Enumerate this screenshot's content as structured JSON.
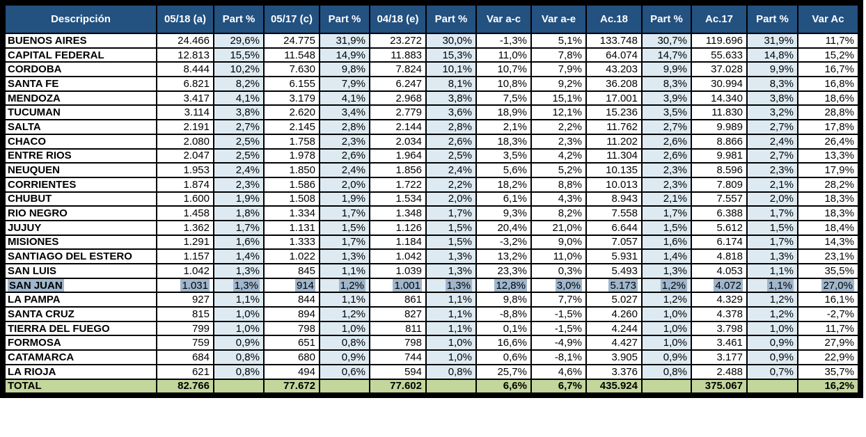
{
  "colors": {
    "header_bg": "#235180",
    "part_bg": "#DDEAF2",
    "total_bg": "#C3D69B",
    "selection": "#9FB6CC",
    "border": "#000000",
    "header_text": "#FFFFFF"
  },
  "table": {
    "columns": [
      "Descripción",
      "05/18 (a)",
      "Part %",
      "05/17 (c)",
      "Part %",
      "04/18 (e)",
      "Part %",
      "Var a-c",
      "Var a-e",
      "Ac.18",
      "Part %",
      "Ac.17",
      "Part %",
      "Var Ac"
    ],
    "rows": [
      {
        "label": "BUENOS AIRES",
        "selected": false,
        "cells": [
          "24.466",
          "29,6%",
          "24.775",
          "31,9%",
          "23.272",
          "30,0%",
          "-1,3%",
          "5,1%",
          "133.748",
          "30,7%",
          "119.696",
          "31,9%",
          "11,7%"
        ]
      },
      {
        "label": "CAPITAL FEDERAL",
        "selected": false,
        "cells": [
          "12.813",
          "15,5%",
          "11.548",
          "14,9%",
          "11.883",
          "15,3%",
          "11,0%",
          "7,8%",
          "64.074",
          "14,7%",
          "55.633",
          "14,8%",
          "15,2%"
        ]
      },
      {
        "label": "CORDOBA",
        "selected": false,
        "cells": [
          "8.444",
          "10,2%",
          "7.630",
          "9,8%",
          "7.824",
          "10,1%",
          "10,7%",
          "7,9%",
          "43.203",
          "9,9%",
          "37.028",
          "9,9%",
          "16,7%"
        ]
      },
      {
        "label": "SANTA FE",
        "selected": false,
        "cells": [
          "6.821",
          "8,2%",
          "6.155",
          "7,9%",
          "6.247",
          "8,1%",
          "10,8%",
          "9,2%",
          "36.208",
          "8,3%",
          "30.994",
          "8,3%",
          "16,8%"
        ]
      },
      {
        "label": "MENDOZA",
        "selected": false,
        "cells": [
          "3.417",
          "4,1%",
          "3.179",
          "4,1%",
          "2.968",
          "3,8%",
          "7,5%",
          "15,1%",
          "17.001",
          "3,9%",
          "14.340",
          "3,8%",
          "18,6%"
        ]
      },
      {
        "label": "TUCUMAN",
        "selected": false,
        "cells": [
          "3.114",
          "3,8%",
          "2.620",
          "3,4%",
          "2.779",
          "3,6%",
          "18,9%",
          "12,1%",
          "15.236",
          "3,5%",
          "11.830",
          "3,2%",
          "28,8%"
        ]
      },
      {
        "label": "SALTA",
        "selected": false,
        "cells": [
          "2.191",
          "2,7%",
          "2.145",
          "2,8%",
          "2.144",
          "2,8%",
          "2,1%",
          "2,2%",
          "11.762",
          "2,7%",
          "9.989",
          "2,7%",
          "17,8%"
        ]
      },
      {
        "label": "CHACO",
        "selected": false,
        "cells": [
          "2.080",
          "2,5%",
          "1.758",
          "2,3%",
          "2.034",
          "2,6%",
          "18,3%",
          "2,3%",
          "11.202",
          "2,6%",
          "8.866",
          "2,4%",
          "26,4%"
        ]
      },
      {
        "label": "ENTRE RIOS",
        "selected": false,
        "cells": [
          "2.047",
          "2,5%",
          "1.978",
          "2,6%",
          "1.964",
          "2,5%",
          "3,5%",
          "4,2%",
          "11.304",
          "2,6%",
          "9.981",
          "2,7%",
          "13,3%"
        ]
      },
      {
        "label": "NEUQUEN",
        "selected": false,
        "cells": [
          "1.953",
          "2,4%",
          "1.850",
          "2,4%",
          "1.856",
          "2,4%",
          "5,6%",
          "5,2%",
          "10.135",
          "2,3%",
          "8.596",
          "2,3%",
          "17,9%"
        ]
      },
      {
        "label": "CORRIENTES",
        "selected": false,
        "cells": [
          "1.874",
          "2,3%",
          "1.586",
          "2,0%",
          "1.722",
          "2,2%",
          "18,2%",
          "8,8%",
          "10.013",
          "2,3%",
          "7.809",
          "2,1%",
          "28,2%"
        ]
      },
      {
        "label": "CHUBUT",
        "selected": false,
        "cells": [
          "1.600",
          "1,9%",
          "1.508",
          "1,9%",
          "1.534",
          "2,0%",
          "6,1%",
          "4,3%",
          "8.943",
          "2,1%",
          "7.557",
          "2,0%",
          "18,3%"
        ]
      },
      {
        "label": "RIO NEGRO",
        "selected": false,
        "cells": [
          "1.458",
          "1,8%",
          "1.334",
          "1,7%",
          "1.348",
          "1,7%",
          "9,3%",
          "8,2%",
          "7.558",
          "1,7%",
          "6.388",
          "1,7%",
          "18,3%"
        ]
      },
      {
        "label": "JUJUY",
        "selected": false,
        "cells": [
          "1.362",
          "1,7%",
          "1.131",
          "1,5%",
          "1.126",
          "1,5%",
          "20,4%",
          "21,0%",
          "6.644",
          "1,5%",
          "5.612",
          "1,5%",
          "18,4%"
        ]
      },
      {
        "label": "MISIONES",
        "selected": false,
        "cells": [
          "1.291",
          "1,6%",
          "1.333",
          "1,7%",
          "1.184",
          "1,5%",
          "-3,2%",
          "9,0%",
          "7.057",
          "1,6%",
          "6.174",
          "1,7%",
          "14,3%"
        ]
      },
      {
        "label": "SANTIAGO DEL ESTERO",
        "selected": false,
        "cells": [
          "1.157",
          "1,4%",
          "1.022",
          "1,3%",
          "1.042",
          "1,3%",
          "13,2%",
          "11,0%",
          "5.931",
          "1,4%",
          "4.818",
          "1,3%",
          "23,1%"
        ]
      },
      {
        "label": "SAN LUIS",
        "selected": false,
        "cells": [
          "1.042",
          "1,3%",
          "845",
          "1,1%",
          "1.039",
          "1,3%",
          "23,3%",
          "0,3%",
          "5.493",
          "1,3%",
          "4.053",
          "1,1%",
          "35,5%"
        ]
      },
      {
        "label": "SAN JUAN",
        "selected": true,
        "cells": [
          "1.031",
          "1,3%",
          "914",
          "1,2%",
          "1.001",
          "1,3%",
          "12,8%",
          "3,0%",
          "5.173",
          "1,2%",
          "4.072",
          "1,1%",
          "27,0%"
        ]
      },
      {
        "label": "LA PAMPA",
        "selected": false,
        "cells": [
          "927",
          "1,1%",
          "844",
          "1,1%",
          "861",
          "1,1%",
          "9,8%",
          "7,7%",
          "5.027",
          "1,2%",
          "4.329",
          "1,2%",
          "16,1%"
        ]
      },
      {
        "label": "SANTA CRUZ",
        "selected": false,
        "cells": [
          "815",
          "1,0%",
          "894",
          "1,2%",
          "827",
          "1,1%",
          "-8,8%",
          "-1,5%",
          "4.260",
          "1,0%",
          "4.378",
          "1,2%",
          "-2,7%"
        ]
      },
      {
        "label": "TIERRA DEL FUEGO",
        "selected": false,
        "cells": [
          "799",
          "1,0%",
          "798",
          "1,0%",
          "811",
          "1,1%",
          "0,1%",
          "-1,5%",
          "4.244",
          "1,0%",
          "3.798",
          "1,0%",
          "11,7%"
        ]
      },
      {
        "label": "FORMOSA",
        "selected": false,
        "cells": [
          "759",
          "0,9%",
          "651",
          "0,8%",
          "798",
          "1,0%",
          "16,6%",
          "-4,9%",
          "4.427",
          "1,0%",
          "3.461",
          "0,9%",
          "27,9%"
        ]
      },
      {
        "label": "CATAMARCA",
        "selected": false,
        "cells": [
          "684",
          "0,8%",
          "680",
          "0,9%",
          "744",
          "1,0%",
          "0,6%",
          "-8,1%",
          "3.905",
          "0,9%",
          "3.177",
          "0,9%",
          "22,9%"
        ]
      },
      {
        "label": "LA RIOJA",
        "selected": false,
        "cells": [
          "621",
          "0,8%",
          "494",
          "0,6%",
          "594",
          "0,8%",
          "25,7%",
          "4,6%",
          "3.376",
          "0,8%",
          "2.488",
          "0,7%",
          "35,7%"
        ]
      }
    ],
    "total": {
      "label": "TOTAL",
      "cells": [
        "82.766",
        "",
        "77.672",
        "",
        "77.602",
        "",
        "6,6%",
        "6,7%",
        "435.924",
        "",
        "375.067",
        "",
        "16,2%"
      ]
    }
  }
}
